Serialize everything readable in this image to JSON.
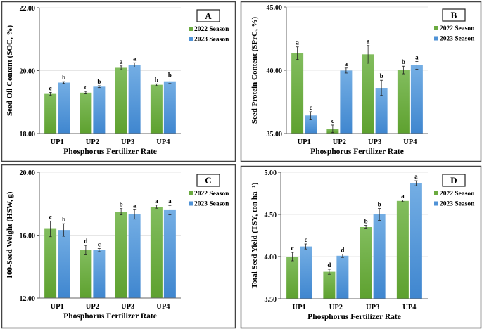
{
  "chart_data": [
    {
      "type": "bar",
      "panel": "A",
      "ylabel": "Seed Oil Content (SOC, %)",
      "xlabel": "Phosphorus Fertilizer Rate",
      "categories": [
        "UP1",
        "UP2",
        "UP3",
        "UP4"
      ],
      "ylim": [
        18,
        22
      ],
      "yticks": [
        "18.00",
        "20.00",
        "22.00"
      ],
      "ytick_values": [
        18,
        20,
        22
      ],
      "series": [
        {
          "name": "2022 Season",
          "values": [
            19.26,
            19.3,
            20.09,
            19.55
          ],
          "errors": [
            0.05,
            0.04,
            0.06,
            0.03
          ],
          "letters": [
            "c",
            "c",
            "a",
            "b"
          ]
        },
        {
          "name": "2023 Season",
          "values": [
            19.62,
            19.49,
            20.18,
            19.66
          ],
          "errors": [
            0.03,
            0.03,
            0.07,
            0.07
          ],
          "letters": [
            "b",
            "b",
            "a",
            "b"
          ]
        }
      ]
    },
    {
      "type": "bar",
      "panel": "B",
      "ylabel": "Seed Protein Content (SPrC, %)",
      "xlabel": "Phosphorus Fertilizer Rate",
      "categories": [
        "UP1",
        "UP2",
        "UP3",
        "UP4"
      ],
      "ylim": [
        35,
        45
      ],
      "yticks": [
        "35.00",
        "40.00",
        "45.00"
      ],
      "ytick_values": [
        35,
        40,
        45
      ],
      "series": [
        {
          "name": "2022 Season",
          "values": [
            41.35,
            35.37,
            41.26,
            40.02
          ],
          "errors": [
            0.5,
            0.3,
            0.7,
            0.3
          ],
          "letters": [
            "a",
            "c",
            "a",
            "b"
          ]
        },
        {
          "name": "2023 Season",
          "values": [
            36.43,
            39.98,
            38.61,
            40.39
          ],
          "errors": [
            0.3,
            0.2,
            0.6,
            0.3
          ],
          "letters": [
            "c",
            "a",
            "b",
            "a"
          ]
        }
      ]
    },
    {
      "type": "bar",
      "panel": "C",
      "ylabel": "100-Seed Weight (HSW, g)",
      "xlabel": "Phosphorus Fertilizer Rate",
      "categories": [
        "UP1",
        "UP2",
        "UP3",
        "UP4"
      ],
      "ylim": [
        12,
        20
      ],
      "yticks": [
        "12.00",
        "16.00",
        "20.00"
      ],
      "ytick_values": [
        12,
        16,
        20
      ],
      "series": [
        {
          "name": "2022 Season",
          "values": [
            16.4,
            15.05,
            17.49,
            17.81
          ],
          "errors": [
            0.5,
            0.3,
            0.2,
            0.1
          ],
          "letters": [
            "c",
            "d",
            "b",
            "a"
          ]
        },
        {
          "name": "2023 Season",
          "values": [
            16.33,
            15.05,
            17.32,
            17.59
          ],
          "errors": [
            0.4,
            0.1,
            0.3,
            0.3
          ],
          "letters": [
            "b",
            "c",
            "a",
            "a"
          ]
        }
      ]
    },
    {
      "type": "bar",
      "panel": "D",
      "ylabel": "Total Seed Yield (TSY, ton ha⁻¹)",
      "xlabel": "Phosphorus Fertilizer Rate",
      "categories": [
        "UP1",
        "UP2",
        "UP3",
        "UP4"
      ],
      "ylim": [
        3.5,
        5.0
      ],
      "yticks": [
        "3.50",
        "4.00",
        "4.50",
        "5.00"
      ],
      "ytick_values": [
        3.5,
        4.0,
        4.5,
        5.0
      ],
      "series": [
        {
          "name": "2022 Season",
          "values": [
            4.0,
            3.82,
            4.35,
            4.66
          ],
          "errors": [
            0.05,
            0.03,
            0.02,
            0.01
          ],
          "letters": [
            "c",
            "d",
            "b",
            "a"
          ]
        },
        {
          "name": "2023 Season",
          "values": [
            4.12,
            4.01,
            4.5,
            4.87
          ],
          "errors": [
            0.03,
            0.02,
            0.07,
            0.03
          ],
          "letters": [
            "c",
            "d",
            "b",
            "a"
          ]
        }
      ]
    }
  ],
  "colors": {
    "2022 Season": "#6aaa3f",
    "2023 Season": "#4f92d6"
  }
}
